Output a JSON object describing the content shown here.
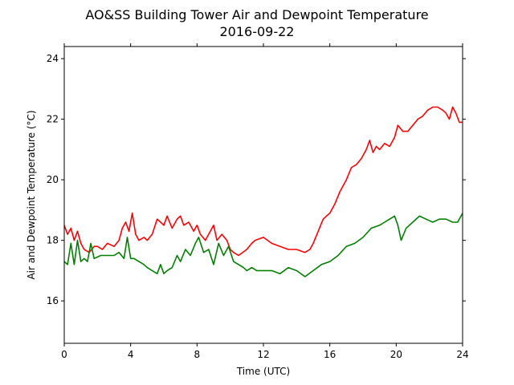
{
  "chart_data": {
    "type": "line",
    "title": "AO&SS Building Tower Air and Dewpoint Temperature",
    "subtitle": "2016-09-22",
    "xlabel": "Time (UTC)",
    "ylabel": "Air and Dewpoint Temperature (°C)",
    "xlim": [
      0,
      24
    ],
    "ylim": [
      14.6,
      24.4
    ],
    "xticks": [
      0,
      4,
      8,
      12,
      16,
      20,
      24
    ],
    "yticks": [
      16,
      18,
      20,
      22,
      24
    ],
    "grid": false,
    "legend": "none",
    "series": [
      {
        "color": "#ff0000",
        "x": [
          0,
          0.2,
          0.4,
          0.6,
          0.8,
          1.0,
          1.2,
          1.5,
          1.8,
          2.0,
          2.3,
          2.6,
          3.0,
          3.3,
          3.5,
          3.7,
          3.9,
          4.1,
          4.3,
          4.5,
          4.8,
          5.0,
          5.3,
          5.6,
          5.8,
          6.0,
          6.2,
          6.5,
          6.8,
          7.0,
          7.2,
          7.5,
          7.8,
          8.0,
          8.2,
          8.5,
          8.8,
          9.0,
          9.2,
          9.5,
          9.8,
          10.0,
          10.2,
          10.5,
          11.0,
          11.3,
          11.5,
          12.0,
          12.5,
          13.0,
          13.5,
          14.0,
          14.5,
          14.8,
          15.0,
          15.3,
          15.6,
          15.8,
          16.0,
          16.3,
          16.6,
          17.0,
          17.3,
          17.6,
          17.9,
          18.2,
          18.4,
          18.6,
          18.8,
          19.0,
          19.3,
          19.6,
          19.9,
          20.1,
          20.4,
          20.7,
          21.0,
          21.3,
          21.6,
          21.9,
          22.2,
          22.5,
          22.8,
          23.0,
          23.2,
          23.4,
          23.6,
          23.8,
          24.0
        ],
        "y": [
          18.5,
          18.2,
          18.4,
          18.0,
          18.3,
          17.9,
          17.7,
          17.6,
          17.8,
          17.8,
          17.7,
          17.9,
          17.8,
          18.0,
          18.4,
          18.6,
          18.3,
          18.9,
          18.2,
          18.0,
          18.1,
          18.0,
          18.2,
          18.7,
          18.6,
          18.5,
          18.8,
          18.4,
          18.7,
          18.8,
          18.5,
          18.6,
          18.3,
          18.5,
          18.2,
          18.0,
          18.3,
          18.5,
          18.0,
          18.2,
          18.0,
          17.7,
          17.6,
          17.5,
          17.7,
          17.9,
          18.0,
          18.1,
          17.9,
          17.8,
          17.7,
          17.7,
          17.6,
          17.7,
          17.9,
          18.3,
          18.7,
          18.8,
          18.9,
          19.2,
          19.6,
          20.0,
          20.4,
          20.5,
          20.7,
          21.0,
          21.3,
          20.9,
          21.1,
          21.0,
          21.2,
          21.1,
          21.4,
          21.8,
          21.6,
          21.6,
          21.8,
          22.0,
          22.1,
          22.3,
          22.4,
          22.4,
          22.3,
          22.2,
          22.0,
          22.4,
          22.2,
          21.9,
          21.9
        ]
      },
      {
        "color": "#008000",
        "x": [
          0,
          0.2,
          0.4,
          0.6,
          0.8,
          1.0,
          1.2,
          1.4,
          1.6,
          1.8,
          2.2,
          2.6,
          3.0,
          3.3,
          3.6,
          3.8,
          4.0,
          4.2,
          4.5,
          4.8,
          5.0,
          5.3,
          5.6,
          5.8,
          6.0,
          6.2,
          6.5,
          6.8,
          7.0,
          7.3,
          7.6,
          7.9,
          8.1,
          8.4,
          8.7,
          9.0,
          9.3,
          9.6,
          9.9,
          10.2,
          10.5,
          10.8,
          11.0,
          11.3,
          11.6,
          12.0,
          12.5,
          13.0,
          13.5,
          14.0,
          14.5,
          15.0,
          15.5,
          16.0,
          16.5,
          17.0,
          17.5,
          18.0,
          18.5,
          19.0,
          19.3,
          19.6,
          19.9,
          20.1,
          20.3,
          20.6,
          21.0,
          21.4,
          21.8,
          22.2,
          22.6,
          23.0,
          23.4,
          23.7,
          24.0
        ],
        "y": [
          17.3,
          17.2,
          17.9,
          17.2,
          18.0,
          17.3,
          17.4,
          17.3,
          17.9,
          17.4,
          17.5,
          17.5,
          17.5,
          17.6,
          17.4,
          18.1,
          17.4,
          17.4,
          17.3,
          17.2,
          17.1,
          17.0,
          16.9,
          17.2,
          16.9,
          17.0,
          17.1,
          17.5,
          17.3,
          17.7,
          17.5,
          17.9,
          18.1,
          17.6,
          17.7,
          17.2,
          17.9,
          17.5,
          17.8,
          17.3,
          17.2,
          17.1,
          17.0,
          17.1,
          17.0,
          17.0,
          17.0,
          16.9,
          17.1,
          17.0,
          16.8,
          17.0,
          17.2,
          17.3,
          17.5,
          17.8,
          17.9,
          18.1,
          18.4,
          18.5,
          18.6,
          18.7,
          18.8,
          18.5,
          18.0,
          18.4,
          18.6,
          18.8,
          18.7,
          18.6,
          18.7,
          18.7,
          18.6,
          18.6,
          18.9
        ]
      }
    ]
  }
}
